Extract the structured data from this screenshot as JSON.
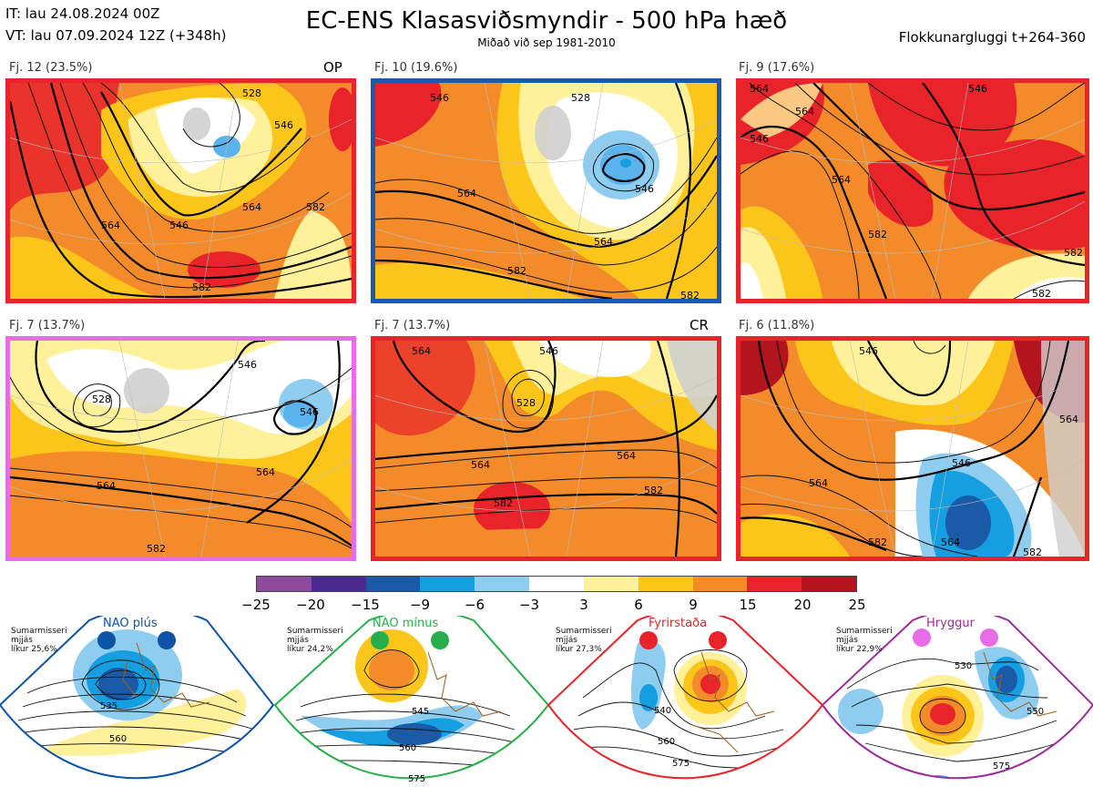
{
  "header": {
    "it": "IT: lau 24.08.2024 00Z",
    "vt": "VT: lau 07.09.2024 12Z  (+348h)",
    "title": "EC-ENS Klasasviðsmyndir - 500 hPa hæð",
    "subtitle": "Miðað við sep 1981-2010",
    "window": "Flokkunargluggi t+264-360"
  },
  "clusters": [
    {
      "label": "Fj. 12 (23.5%)",
      "tag": "OP",
      "border_color": "#e8232a",
      "contours": [
        "528",
        "546",
        "546",
        "564",
        "564",
        "582",
        "582"
      ]
    },
    {
      "label": "Fj. 10 (19.6%)",
      "tag": "",
      "border_color": "#1a5aa6",
      "contours": [
        "528",
        "546",
        "546",
        "564",
        "564",
        "582",
        "582"
      ]
    },
    {
      "label": "Fj. 9 (17.6%)",
      "tag": "",
      "border_color": "#e8232a",
      "contours": [
        "546",
        "546",
        "564",
        "564",
        "564",
        "582",
        "582",
        "582"
      ]
    },
    {
      "label": "Fj. 7 (13.7%)",
      "tag": "",
      "border_color": "#e86be8",
      "contours": [
        "528",
        "546",
        "546",
        "564",
        "564",
        "582"
      ]
    },
    {
      "label": "Fj. 7 (13.7%)",
      "tag": "CR",
      "border_color": "#e8232a",
      "contours": [
        "528",
        "546",
        "564",
        "564",
        "564",
        "582",
        "582"
      ]
    },
    {
      "label": "Fj. 6 (11.8%)",
      "tag": "",
      "border_color": "#e8232a",
      "contours": [
        "546",
        "546",
        "564",
        "564",
        "564",
        "582",
        "582"
      ]
    }
  ],
  "colorbar": {
    "colors": [
      "#8e4a9c",
      "#4b2a92",
      "#1a5aa6",
      "#159ee0",
      "#8fcdf0",
      "#ffffff",
      "#fff19a",
      "#fcc51a",
      "#f38b2a",
      "#e8232a",
      "#b3141e"
    ],
    "ticks": [
      "−25",
      "−20",
      "−15",
      "−9",
      "−6",
      "−3",
      "3",
      "6",
      "9",
      "15",
      "20",
      "25"
    ]
  },
  "regimes": [
    {
      "name": "NAO plús",
      "dot_color": "#0d53a6",
      "border_color": "#0d53a6",
      "season": "Sumarmisseri",
      "smooth": "mjjás",
      "prob": "líkur 25,6%",
      "contours": [
        "535",
        "560"
      ]
    },
    {
      "name": "NAO mínus",
      "dot_color": "#27ae4a",
      "border_color": "#27ae4a",
      "season": "Sumarmisseri",
      "smooth": "mjjás",
      "prob": "líkur 24,2%",
      "contours": [
        "545",
        "560",
        "575"
      ]
    },
    {
      "name": "Fyrirstaða",
      "dot_color": "#e8232a",
      "border_color": "#e8232a",
      "season": "Sumarmisseri",
      "smooth": "mjjás",
      "prob": "líkur 27,3%",
      "contours": [
        "540",
        "560",
        "575"
      ]
    },
    {
      "name": "Hryggur",
      "dot_color": "#e86be8",
      "border_color": "#9b2c9b",
      "season": "Sumarmisseri",
      "smooth": "mjjás",
      "prob": "líkur 22,9%",
      "contours": [
        "530",
        "550",
        "575"
      ]
    }
  ]
}
